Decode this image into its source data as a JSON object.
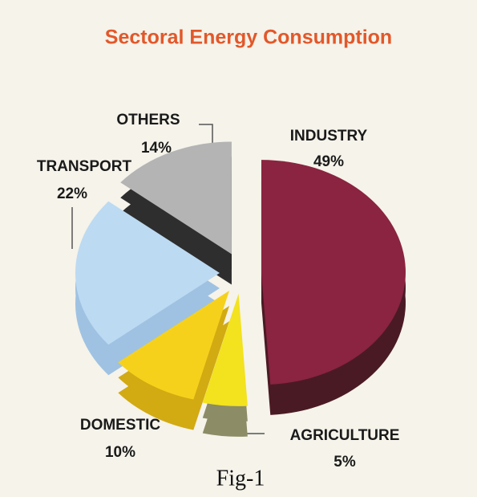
{
  "chart_data": {
    "type": "pie",
    "title": "Sectoral Energy Consumption",
    "categories": [
      "INDUSTRY",
      "AGRICULTURE",
      "DOMESTIC",
      "TRANSPORT",
      "OTHERS"
    ],
    "values": [
      49,
      5,
      10,
      22,
      14
    ],
    "value_labels": [
      "49%",
      "5%",
      "10%",
      "22%",
      "14%"
    ],
    "colors": [
      "#8a2440",
      "#f3e21e",
      "#f6d11c",
      "#bcdaf2",
      "#b4b4b4"
    ],
    "side_colors": [
      "#4a1a24",
      "#8c8c66",
      "#d2aa12",
      "#9fc2e2",
      "#2e2e2e"
    ],
    "caption": "Fig-1"
  }
}
